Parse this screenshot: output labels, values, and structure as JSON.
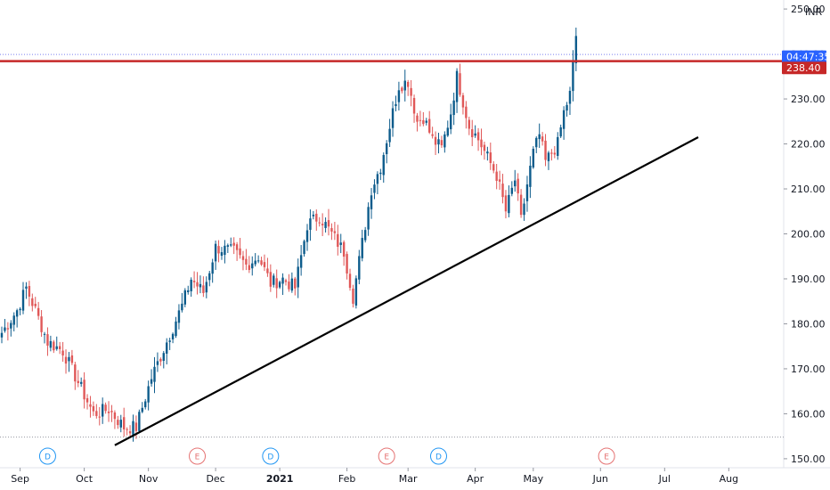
{
  "chart_data": {
    "type": "candlestick",
    "currency": "INR",
    "ylim": [
      148,
      252
    ],
    "y_ticks": [
      {
        "v": 250,
        "label": "250.00"
      },
      {
        "v": 240,
        "label": "240.00"
      },
      {
        "v": 230,
        "label": "230.00"
      },
      {
        "v": 220,
        "label": "220.00"
      },
      {
        "v": 210,
        "label": "210.00"
      },
      {
        "v": 200,
        "label": "200.00"
      },
      {
        "v": 190,
        "label": "190.00"
      },
      {
        "v": 180,
        "label": "180.00"
      },
      {
        "v": 170,
        "label": "170.00"
      },
      {
        "v": 160,
        "label": "160.00"
      },
      {
        "v": 150,
        "label": "150.00"
      }
    ],
    "x_ticks": [
      {
        "label": "Sep",
        "bar": 6,
        "bold": false
      },
      {
        "label": "Oct",
        "bar": 27,
        "bold": false
      },
      {
        "label": "Nov",
        "bar": 48,
        "bold": false
      },
      {
        "label": "Dec",
        "bar": 70,
        "bold": false
      },
      {
        "label": "2021",
        "bar": 91,
        "bold": true
      },
      {
        "label": "Feb",
        "bar": 113,
        "bold": false
      },
      {
        "label": "Mar",
        "bar": 133,
        "bold": false
      },
      {
        "label": "Apr",
        "bar": 155,
        "bold": false
      },
      {
        "label": "May",
        "bar": 174,
        "bold": false
      },
      {
        "label": "Jun",
        "bar": 196,
        "bold": false
      },
      {
        "label": "Jul",
        "bar": 217,
        "bold": false
      },
      {
        "label": "Aug",
        "bar": 238,
        "bold": false
      }
    ],
    "price_tags": [
      {
        "label": "04:47:35",
        "value": 239.4,
        "color": "#2962ff"
      },
      {
        "label": "238.40",
        "value": 236.9,
        "color": "#c62828"
      }
    ],
    "resistance_level": 238.4,
    "resistance_color": "#c62828",
    "dotted_levels": [
      {
        "value": 239.9,
        "color": "#7b7ff0"
      },
      {
        "value": 154.8,
        "color": "#9598a1"
      }
    ],
    "trendline": {
      "from": {
        "bar": 37,
        "value": 153
      },
      "to": {
        "bar": 228,
        "value": 221.5
      },
      "color": "#000000"
    },
    "events": [
      {
        "label": "D",
        "bar": 15,
        "color": "#2196f3"
      },
      {
        "label": "E",
        "bar": 64,
        "color": "#e57373"
      },
      {
        "label": "D",
        "bar": 88,
        "color": "#2196f3"
      },
      {
        "label": "E",
        "bar": 126,
        "color": "#e57373"
      },
      {
        "label": "D",
        "bar": 143,
        "color": "#2196f3"
      },
      {
        "label": "E",
        "bar": 198,
        "color": "#e57373"
      }
    ],
    "up_color": "#0d5c8c",
    "down_color": "#e05858",
    "waypoints": [
      [
        0,
        178
      ],
      [
        5,
        183
      ],
      [
        8,
        188
      ],
      [
        11,
        183
      ],
      [
        15,
        176
      ],
      [
        20,
        174
      ],
      [
        25,
        167
      ],
      [
        30,
        160
      ],
      [
        35,
        161
      ],
      [
        40,
        157
      ],
      [
        44,
        157
      ],
      [
        49,
        168
      ],
      [
        54,
        176
      ],
      [
        59,
        184
      ],
      [
        62,
        190
      ],
      [
        66,
        187
      ],
      [
        70,
        197
      ],
      [
        76,
        196
      ],
      [
        80,
        193
      ],
      [
        84,
        195
      ],
      [
        88,
        189
      ],
      [
        92,
        190
      ],
      [
        96,
        188
      ],
      [
        100,
        202
      ],
      [
        104,
        204
      ],
      [
        108,
        200
      ],
      [
        112,
        196
      ],
      [
        115,
        186
      ],
      [
        118,
        198
      ],
      [
        121,
        210
      ],
      [
        124,
        215
      ],
      [
        127,
        224
      ],
      [
        130,
        233
      ],
      [
        133,
        234
      ],
      [
        136,
        225
      ],
      [
        138,
        226
      ],
      [
        141,
        221
      ],
      [
        144,
        219
      ],
      [
        147,
        227
      ],
      [
        149,
        235
      ],
      [
        153,
        224
      ],
      [
        156,
        221
      ],
      [
        159,
        217
      ],
      [
        162,
        213
      ],
      [
        165,
        205
      ],
      [
        168,
        212
      ],
      [
        170,
        203
      ],
      [
        172,
        211
      ],
      [
        174,
        218
      ],
      [
        176,
        222
      ],
      [
        178,
        216
      ],
      [
        182,
        220
      ],
      [
        184,
        227
      ],
      [
        186,
        231
      ],
      [
        188,
        244
      ]
    ]
  }
}
